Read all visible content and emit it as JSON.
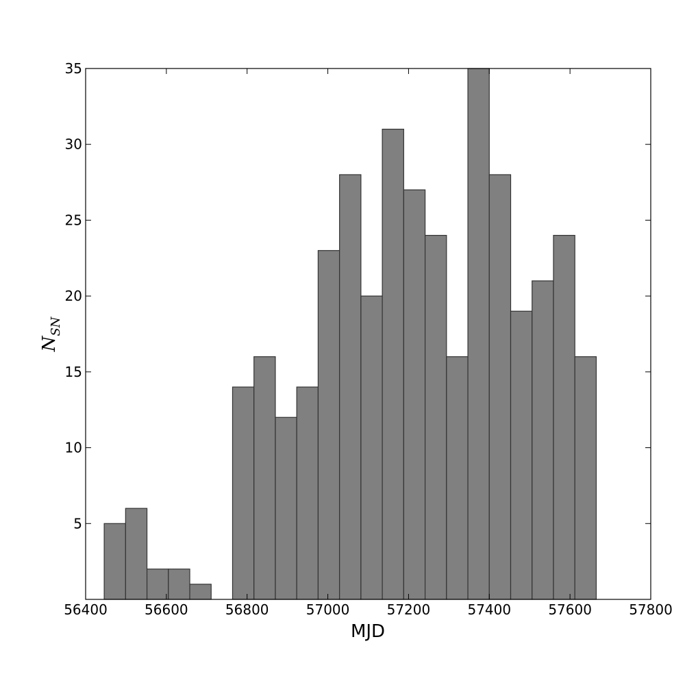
{
  "chart_data": {
    "type": "bar",
    "histogram": true,
    "title": "",
    "xlabel": "MJD",
    "ylabel": "N",
    "ylabel_subscript": "SN",
    "xlim": [
      56400,
      57800
    ],
    "ylim": [
      0,
      35
    ],
    "xticks": [
      56400,
      56600,
      56800,
      57000,
      57200,
      57400,
      57600,
      57800
    ],
    "xtick_labels": [
      "56400",
      "56600",
      "56800",
      "57000",
      "57200",
      "57400",
      "57600",
      "57800"
    ],
    "yticks": [
      5,
      10,
      15,
      20,
      25,
      30,
      35
    ],
    "ytick_labels": [
      "5",
      "10",
      "15",
      "20",
      "25",
      "30",
      "35"
    ],
    "bin_edges": [
      56446,
      56499,
      56552,
      56605,
      56658,
      56711,
      56764,
      56817,
      56870,
      56923,
      56976,
      57029,
      57082,
      57135,
      57188,
      57241,
      57294,
      57347,
      57400,
      57453,
      57506,
      57559,
      57612,
      57665
    ],
    "values": [
      5,
      6,
      2,
      2,
      1,
      0,
      14,
      16,
      12,
      14,
      23,
      28,
      20,
      31,
      27,
      24,
      16,
      35,
      28,
      19,
      21,
      24,
      16
    ],
    "bar_color": "#808080",
    "edge_color": "#333333",
    "grid": false,
    "legend": "none"
  }
}
